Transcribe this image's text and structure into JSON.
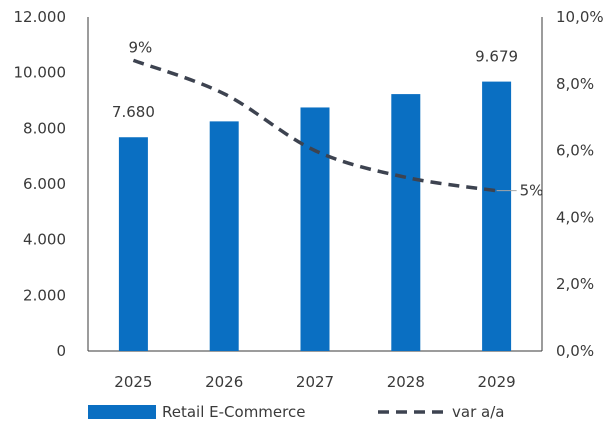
{
  "chart_data": {
    "type": "bar",
    "categories": [
      "2025",
      "2026",
      "2027",
      "2028",
      "2029"
    ],
    "series": [
      {
        "name": "Retail E-Commerce",
        "type": "bar",
        "axis": "left",
        "color": "#0a6fc2",
        "values": [
          7680,
          8250,
          8750,
          9230,
          9679
        ]
      },
      {
        "name": "var a/a",
        "type": "line",
        "style": "dashed",
        "axis": "right",
        "color": "#3d4350",
        "values": [
          8.7,
          7.7,
          6.0,
          5.2,
          4.8
        ]
      }
    ],
    "ylim_left": [
      0,
      12000
    ],
    "ylim_right": [
      0,
      10
    ],
    "left_ticks": [
      "0",
      "2.000",
      "4.000",
      "6.000",
      "8.000",
      "10.000",
      "12.000"
    ],
    "right_ticks": [
      "0,0%",
      "2,0%",
      "4,0%",
      "6,0%",
      "8,0%",
      "10,0%"
    ],
    "data_labels": [
      {
        "series": 0,
        "index": 0,
        "text": "7.680"
      },
      {
        "series": 0,
        "index": 4,
        "text": "9.679"
      },
      {
        "series": 1,
        "index": 0,
        "text": "9%"
      },
      {
        "series": 1,
        "index": 4,
        "text": "5%"
      }
    ],
    "grid": false,
    "legend_position": "bottom"
  }
}
